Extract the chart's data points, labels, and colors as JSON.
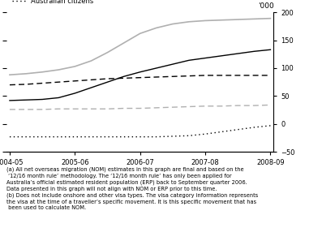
{
  "ylabel_top": "'000",
  "x_labels": [
    "2004-05",
    "2005-06",
    "2006-07",
    "2007-08",
    "2008-09"
  ],
  "ylim": [
    -50,
    200
  ],
  "yticks": [
    -50,
    0,
    50,
    100,
    150,
    200
  ],
  "series": {
    "student_visas": {
      "color": "#000000",
      "linestyle": "solid",
      "linewidth": 1.0,
      "values": [
        42,
        43,
        44,
        47,
        55,
        65,
        75,
        85,
        93,
        100,
        107,
        114,
        118,
        122,
        126,
        130,
        133
      ]
    },
    "all_temporary": {
      "color": "#b0b0b0",
      "linestyle": "solid",
      "linewidth": 1.2,
      "values": [
        88,
        90,
        93,
        97,
        103,
        113,
        128,
        145,
        162,
        172,
        179,
        183,
        185,
        186,
        187,
        188,
        189
      ]
    },
    "permanent_visas": {
      "color": "#000000",
      "linestyle": "dashed",
      "linewidth": 1.0,
      "values": [
        70,
        71,
        73,
        75,
        77,
        79,
        81,
        82,
        83,
        84,
        85,
        86,
        87,
        87,
        87,
        87,
        87
      ]
    },
    "nz_citizens": {
      "color": "#b0b0b0",
      "linestyle": "dashed",
      "linewidth": 1.0,
      "values": [
        26,
        26,
        26,
        27,
        27,
        27,
        27,
        28,
        28,
        29,
        30,
        31,
        32,
        32,
        33,
        33,
        34
      ]
    },
    "australian_citizens": {
      "label": "Australian citizens",
      "color": "#000000",
      "linestyle": "dotted",
      "linewidth": 1.0,
      "values": [
        -23,
        -23,
        -23,
        -23,
        -23,
        -23,
        -23,
        -23,
        -23,
        -23,
        -22,
        -21,
        -18,
        -14,
        -10,
        -6,
        -3
      ]
    }
  },
  "footnote": "(a) All net overseas migration (NOM) estimates in this graph are final and based on the\n ‘12/16 month rule’ methodology. The ‘12/16 month rule’ has only been applied for\nAustralia’s official estimated resident population (ERP) back to September quarter 2006.\nData presented in this graph will not align with NOM or ERP prior to this time.\n(b) Does not include onshore and other visa types. The visa category information represents\nthe visa at the time of a traveller’s specific movement. It is this specific movement that has\n been used to calculate NOM.",
  "background_color": "#ffffff"
}
